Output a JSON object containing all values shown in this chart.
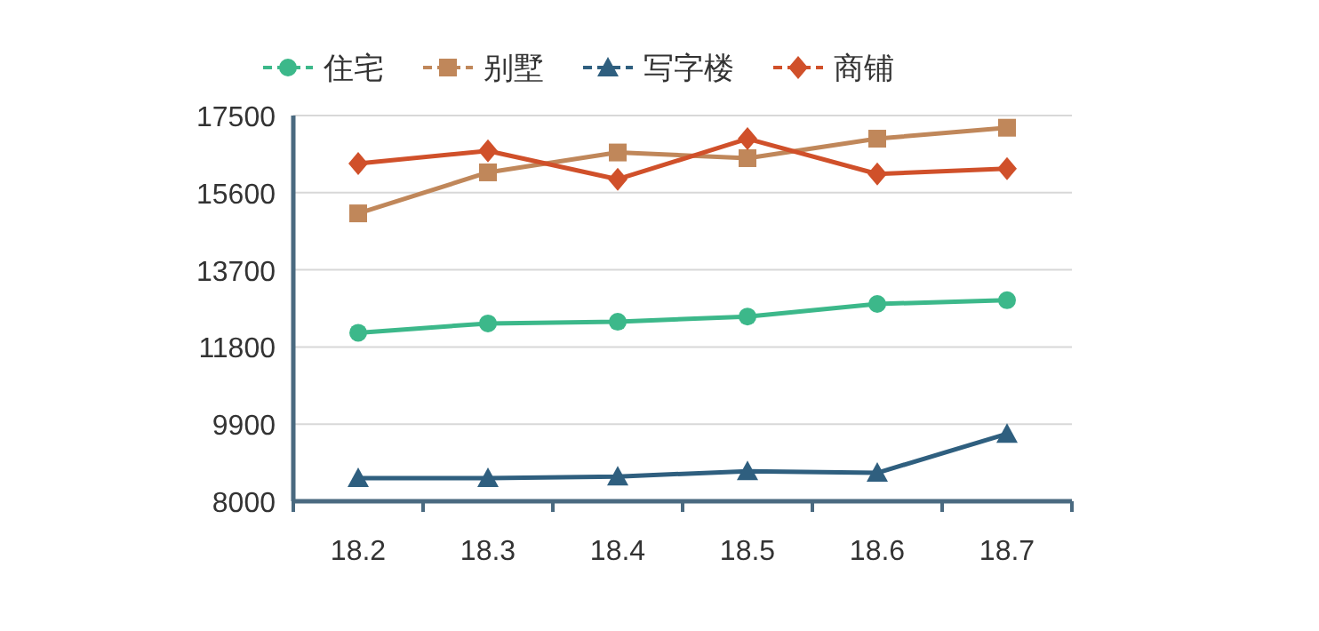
{
  "chart_data": {
    "type": "line",
    "categories": [
      "18.2",
      "18.3",
      "18.4",
      "18.5",
      "18.6",
      "18.7"
    ],
    "series": [
      {
        "name": "住宅",
        "color": "#3cb88a",
        "marker": "circle",
        "values": [
          12150,
          12380,
          12420,
          12550,
          12860,
          12950
        ]
      },
      {
        "name": "别墅",
        "color": "#c0875a",
        "marker": "square",
        "values": [
          15090,
          16100,
          16590,
          16450,
          16930,
          17200
        ]
      },
      {
        "name": "写字楼",
        "color": "#2f5f7f",
        "marker": "triangle",
        "values": [
          8570,
          8570,
          8610,
          8740,
          8700,
          9660
        ]
      },
      {
        "name": "商铺",
        "color": "#d0502a",
        "marker": "diamond",
        "values": [
          16320,
          16630,
          15930,
          16930,
          16060,
          16190
        ]
      }
    ],
    "ylim": [
      8000,
      17500
    ],
    "yticks": [
      8000,
      9900,
      11800,
      13700,
      15600,
      17500
    ],
    "grid": "y",
    "legend": "top"
  }
}
